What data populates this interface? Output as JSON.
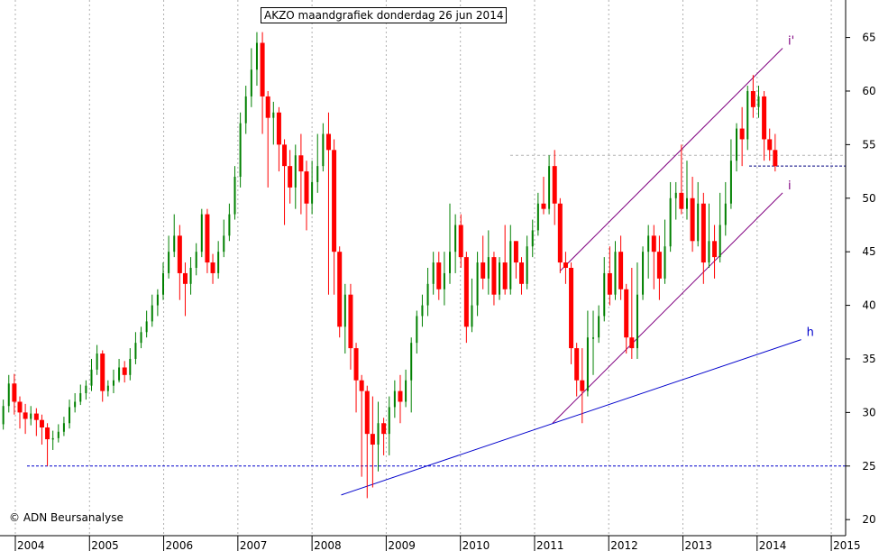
{
  "chart_data": {
    "type": "candlestick",
    "title": "AKZO maandgrafiek donderdag 26 jun 2014",
    "copyright": "© ADN Beursanalyse",
    "y_axis": {
      "side": "right",
      "ticks": [
        20,
        25,
        30,
        35,
        40,
        45,
        50,
        55,
        60,
        65
      ],
      "range": [
        18.5,
        68.5
      ]
    },
    "x_axis": {
      "labels": [
        "2004",
        "2005",
        "2006",
        "2007",
        "2008",
        "2009",
        "2010",
        "2011",
        "2012",
        "2013",
        "2014",
        "2015"
      ],
      "start_year": 2004,
      "end_year": 2015.4
    },
    "grid": {
      "vertical": "dotted",
      "horizontal": "none"
    },
    "colors": {
      "up": "#008000",
      "down": "#ff0000",
      "trend": "#0000cc",
      "channel": "#800080"
    },
    "candles": [
      [
        27.9,
        28.9,
        27.5,
        29.5
      ],
      [
        28.9,
        30.6,
        28.4,
        31.2
      ],
      [
        30.6,
        32.7,
        30.0,
        33.5
      ],
      [
        32.7,
        31.0,
        29.8,
        33.6
      ],
      [
        31.0,
        30.0,
        28.5,
        31.5
      ],
      [
        30.0,
        29.4,
        28.0,
        30.8
      ],
      [
        29.4,
        29.9,
        28.8,
        30.6
      ],
      [
        29.9,
        29.3,
        27.8,
        30.4
      ],
      [
        29.3,
        28.6,
        27.0,
        29.8
      ],
      [
        28.6,
        27.5,
        25.0,
        29.0
      ],
      [
        27.5,
        27.6,
        26.5,
        28.3
      ],
      [
        27.6,
        28.2,
        27.2,
        28.9
      ],
      [
        28.2,
        29.0,
        27.8,
        29.6
      ],
      [
        29.0,
        30.5,
        28.5,
        31.2
      ],
      [
        30.5,
        31.0,
        30.0,
        31.8
      ],
      [
        31.0,
        31.8,
        30.7,
        32.6
      ],
      [
        31.8,
        32.5,
        31.2,
        33.0
      ],
      [
        32.5,
        34.0,
        32.0,
        35.0
      ],
      [
        34.0,
        35.5,
        33.5,
        36.3
      ],
      [
        35.5,
        32.0,
        31.0,
        35.8
      ],
      [
        32.0,
        32.5,
        31.5,
        33.0
      ],
      [
        32.5,
        33.0,
        31.8,
        34.0
      ],
      [
        33.0,
        34.2,
        32.8,
        35.0
      ],
      [
        34.2,
        33.5,
        32.8,
        34.8
      ],
      [
        33.5,
        35.0,
        33.0,
        36.0
      ],
      [
        35.0,
        36.5,
        34.5,
        37.5
      ],
      [
        36.5,
        37.5,
        36.0,
        38.0
      ],
      [
        37.5,
        38.5,
        37.0,
        39.5
      ],
      [
        38.5,
        40.0,
        38.0,
        41.0
      ],
      [
        40.0,
        41.0,
        39.0,
        41.5
      ],
      [
        41.0,
        43.0,
        40.5,
        44.0
      ],
      [
        43.0,
        45.0,
        42.5,
        46.5
      ],
      [
        45.0,
        46.5,
        44.5,
        48.5
      ],
      [
        46.5,
        43.0,
        40.5,
        47.5
      ],
      [
        43.0,
        42.0,
        39.0,
        44.0
      ],
      [
        42.0,
        43.5,
        41.0,
        44.5
      ],
      [
        43.5,
        45.0,
        42.8,
        45.8
      ],
      [
        45.0,
        48.5,
        44.5,
        49.0
      ],
      [
        48.5,
        44.0,
        43.0,
        49.0
      ],
      [
        44.0,
        43.0,
        42.0,
        44.8
      ],
      [
        43.0,
        45.0,
        42.5,
        46.0
      ],
      [
        45.0,
        46.5,
        44.5,
        48.0
      ],
      [
        46.5,
        48.5,
        46.0,
        49.5
      ],
      [
        48.5,
        52.0,
        48.0,
        53.0
      ],
      [
        52.0,
        57.0,
        51.0,
        58.0
      ],
      [
        57.0,
        59.5,
        56.0,
        60.5
      ],
      [
        59.5,
        62.0,
        58.5,
        64.0
      ],
      [
        62.0,
        64.5,
        60.5,
        65.5
      ],
      [
        64.5,
        59.5,
        56.0,
        65.5
      ],
      [
        59.5,
        57.5,
        51.0,
        60.0
      ],
      [
        57.5,
        58.0,
        55.0,
        59.0
      ],
      [
        58.0,
        55.0,
        52.5,
        58.5
      ],
      [
        55.0,
        53.0,
        47.5,
        55.5
      ],
      [
        53.0,
        51.0,
        49.5,
        54.5
      ],
      [
        51.0,
        54.0,
        49.0,
        55.0
      ],
      [
        54.0,
        52.5,
        48.5,
        56.0
      ],
      [
        52.5,
        49.5,
        47.0,
        53.5
      ],
      [
        49.5,
        51.5,
        48.5,
        53.5
      ],
      [
        51.5,
        53.0,
        50.5,
        56.0
      ],
      [
        53.0,
        56.0,
        52.5,
        57.0
      ],
      [
        56.0,
        54.5,
        41.0,
        58.0
      ],
      [
        54.5,
        45.0,
        41.0,
        55.5
      ],
      [
        45.0,
        38.0,
        37.0,
        45.5
      ],
      [
        38.0,
        41.0,
        35.5,
        42.0
      ],
      [
        41.0,
        36.0,
        34.0,
        42.0
      ],
      [
        36.0,
        33.0,
        30.0,
        36.5
      ],
      [
        33.0,
        32.0,
        24.0,
        33.5
      ],
      [
        32.0,
        28.0,
        22.0,
        32.5
      ],
      [
        28.0,
        27.0,
        23.0,
        31.5
      ],
      [
        27.0,
        29.0,
        24.5,
        31.0
      ],
      [
        29.0,
        28.0,
        26.0,
        29.5
      ],
      [
        28.0,
        30.5,
        26.0,
        31.5
      ],
      [
        30.5,
        32.0,
        29.5,
        33.0
      ],
      [
        32.0,
        31.0,
        29.0,
        33.5
      ],
      [
        31.0,
        33.0,
        30.5,
        34.0
      ],
      [
        33.0,
        36.5,
        30.0,
        37.0
      ],
      [
        36.5,
        39.0,
        35.5,
        39.5
      ],
      [
        39.0,
        40.0,
        38.0,
        41.0
      ],
      [
        40.0,
        42.0,
        39.0,
        43.5
      ],
      [
        42.0,
        44.0,
        41.0,
        45.0
      ],
      [
        44.0,
        41.5,
        40.5,
        45.0
      ],
      [
        41.5,
        43.0,
        40.0,
        45.0
      ],
      [
        43.0,
        45.0,
        42.0,
        49.5
      ],
      [
        45.0,
        47.5,
        43.0,
        48.5
      ],
      [
        47.5,
        44.5,
        43.5,
        48.5
      ],
      [
        44.5,
        38.0,
        36.5,
        45.0
      ],
      [
        38.0,
        40.0,
        37.5,
        42.5
      ],
      [
        40.0,
        44.0,
        39.0,
        45.0
      ],
      [
        44.0,
        42.5,
        41.5,
        46.5
      ],
      [
        42.5,
        44.5,
        41.0,
        47.0
      ],
      [
        44.5,
        41.0,
        40.0,
        45.0
      ],
      [
        41.0,
        44.0,
        40.5,
        44.5
      ],
      [
        44.0,
        41.5,
        41.0,
        47.5
      ],
      [
        41.5,
        46.0,
        41.0,
        47.5
      ],
      [
        46.0,
        44.0,
        42.5,
        46.0
      ],
      [
        44.0,
        42.0,
        41.0,
        44.5
      ],
      [
        42.0,
        45.5,
        41.5,
        46.5
      ],
      [
        45.5,
        47.0,
        44.5,
        48.0
      ],
      [
        47.0,
        49.5,
        46.5,
        50.5
      ],
      [
        49.5,
        49.0,
        48.5,
        52.0
      ],
      [
        49.0,
        53.0,
        48.5,
        54.0
      ],
      [
        53.0,
        49.5,
        47.5,
        54.5
      ],
      [
        49.5,
        44.0,
        43.0,
        50.0
      ],
      [
        44.0,
        43.5,
        42.0,
        45.0
      ],
      [
        43.5,
        36.0,
        34.5,
        44.0
      ],
      [
        36.0,
        33.0,
        31.5,
        36.5
      ],
      [
        33.0,
        32.0,
        29.0,
        36.0
      ],
      [
        32.0,
        37.0,
        31.5,
        39.5
      ],
      [
        37.0,
        37.0,
        33.5,
        39.5
      ],
      [
        37.0,
        39.0,
        36.5,
        40.0
      ],
      [
        39.0,
        43.0,
        38.5,
        44.5
      ],
      [
        43.0,
        41.0,
        40.0,
        45.5
      ],
      [
        41.0,
        45.0,
        40.5,
        46.0
      ],
      [
        45.0,
        41.5,
        40.5,
        46.5
      ],
      [
        41.5,
        37.0,
        35.5,
        42.0
      ],
      [
        37.0,
        36.0,
        35.0,
        43.5
      ],
      [
        36.0,
        41.0,
        35.0,
        44.0
      ],
      [
        41.0,
        45.0,
        40.5,
        45.5
      ],
      [
        45.0,
        46.5,
        42.5,
        47.5
      ],
      [
        46.5,
        45.0,
        41.5,
        47.5
      ],
      [
        45.0,
        42.5,
        40.5,
        46.5
      ],
      [
        42.5,
        45.5,
        42.0,
        48.0
      ],
      [
        45.5,
        50.0,
        45.0,
        51.5
      ],
      [
        50.0,
        50.5,
        48.0,
        51.5
      ],
      [
        50.5,
        49.0,
        48.5,
        55.0
      ],
      [
        49.0,
        50.0,
        48.0,
        53.5
      ],
      [
        50.0,
        46.0,
        45.0,
        52.0
      ],
      [
        46.0,
        49.5,
        45.5,
        51.5
      ],
      [
        49.5,
        44.0,
        42.0,
        50.5
      ],
      [
        44.0,
        46.0,
        43.5,
        49.5
      ],
      [
        46.0,
        44.5,
        42.5,
        47.5
      ],
      [
        44.5,
        47.5,
        44.0,
        50.5
      ],
      [
        47.5,
        49.5,
        46.5,
        51.5
      ],
      [
        49.5,
        53.5,
        49.0,
        55.5
      ],
      [
        53.5,
        56.5,
        52.5,
        57.0
      ],
      [
        56.5,
        55.5,
        53.0,
        58.5
      ],
      [
        55.5,
        60.0,
        54.5,
        60.5
      ],
      [
        60.0,
        58.5,
        57.5,
        61.5
      ],
      [
        58.5,
        59.5,
        57.5,
        60.5
      ],
      [
        59.5,
        55.5,
        53.5,
        60.0
      ],
      [
        55.5,
        54.5,
        53.5,
        56.5
      ],
      [
        54.5,
        53.0,
        52.5,
        56.0
      ]
    ],
    "support_level": 25,
    "channel_ref_level": 54.0,
    "close_level": 53.0,
    "lines": [
      {
        "name": "i'",
        "color": "#800080",
        "from": [
          2011.55,
          43.2
        ],
        "to": [
          2014.55,
          64.0
        ]
      },
      {
        "name": "i",
        "color": "#800080",
        "from": [
          2011.45,
          29.0
        ],
        "to": [
          2014.55,
          50.5
        ]
      },
      {
        "name": "h",
        "color": "#0000cc",
        "from": [
          2008.6,
          22.3
        ],
        "to": [
          2014.8,
          36.8
        ]
      }
    ]
  }
}
